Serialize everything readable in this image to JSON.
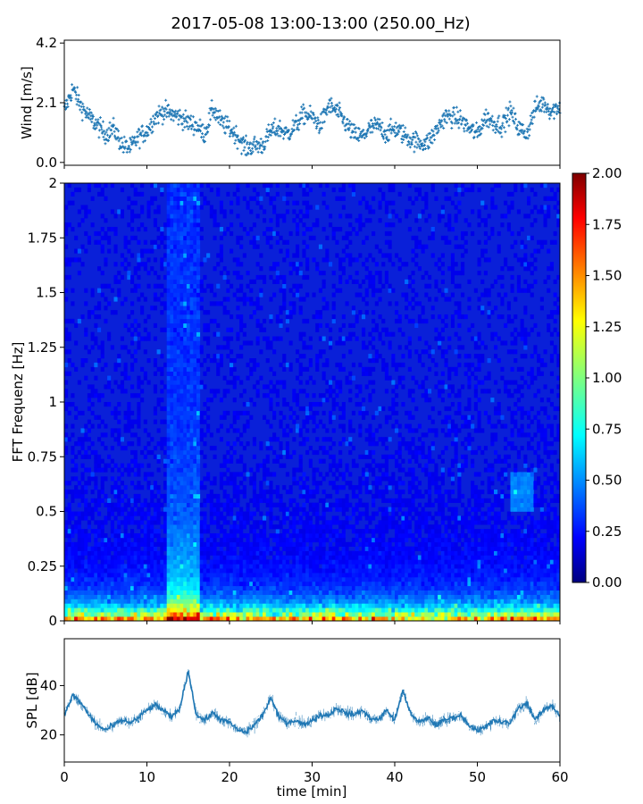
{
  "chart_data": [
    {
      "type": "scatter",
      "title": "2017-05-08 13:00-13:00 (250.00_Hz)",
      "ylabel": "Wind [m/s]",
      "xlim": [
        0,
        60
      ],
      "ylim": [
        -0.1,
        4.3
      ],
      "yticks": [
        "0.0",
        "2.1",
        "4.2"
      ],
      "marker_color": "#1f77b4",
      "x": [
        0,
        1,
        2,
        3,
        4,
        5,
        6,
        7,
        8,
        9,
        10,
        11,
        12,
        13,
        14,
        15,
        16,
        17,
        18,
        19,
        20,
        21,
        22,
        23,
        24,
        25,
        26,
        27,
        28,
        29,
        30,
        31,
        32,
        33,
        34,
        35,
        36,
        37,
        38,
        39,
        40,
        41,
        42,
        43,
        44,
        45,
        46,
        47,
        48,
        49,
        50,
        51,
        52,
        53,
        54,
        55,
        56,
        57,
        58,
        59,
        60
      ],
      "y": [
        1.8,
        2.6,
        2.0,
        1.6,
        1.3,
        1.0,
        1.2,
        0.6,
        0.5,
        0.9,
        1.1,
        1.6,
        1.8,
        1.7,
        1.6,
        1.4,
        1.3,
        1.0,
        1.9,
        1.4,
        1.2,
        0.9,
        0.5,
        0.6,
        0.6,
        1.1,
        1.2,
        1.0,
        1.3,
        1.7,
        1.6,
        1.3,
        2.0,
        1.8,
        1.4,
        1.0,
        0.9,
        1.2,
        1.3,
        1.0,
        1.2,
        1.0,
        0.8,
        0.7,
        0.7,
        1.1,
        1.6,
        1.6,
        1.5,
        1.2,
        1.0,
        1.6,
        1.4,
        1.3,
        1.8,
        1.2,
        1.0,
        1.9,
        2.1,
        1.8,
        2.0
      ]
    },
    {
      "type": "heatmap",
      "ylabel": "FFT Frequenz [Hz]",
      "xlim": [
        0,
        60
      ],
      "ylim": [
        0,
        2
      ],
      "yticks": [
        "0",
        "0.25",
        "0.5",
        "0.75",
        "1",
        "1.25",
        "1.5",
        "1.75",
        "2"
      ],
      "colormap": "jet",
      "colorbar": {
        "vmin": 0.0,
        "vmax": 2.0,
        "ticks": [
          "0.00",
          "0.25",
          "0.50",
          "0.75",
          "1.00",
          "1.25",
          "1.50",
          "1.75",
          "2.00"
        ]
      }
    },
    {
      "type": "line",
      "xlabel": "time [min]",
      "ylabel": "SPL [dB]",
      "xlim": [
        0,
        60
      ],
      "ylim": [
        9,
        59
      ],
      "xticks": [
        "0",
        "10",
        "20",
        "30",
        "40",
        "50",
        "60"
      ],
      "yticks": [
        "20",
        "40"
      ],
      "line_color": "#1f77b4",
      "x": [
        0,
        1,
        2,
        3,
        4,
        5,
        6,
        7,
        8,
        9,
        10,
        11,
        12,
        13,
        14,
        15,
        16,
        17,
        18,
        19,
        20,
        21,
        22,
        23,
        24,
        25,
        26,
        27,
        28,
        29,
        30,
        31,
        32,
        33,
        34,
        35,
        36,
        37,
        38,
        39,
        40,
        41,
        42,
        43,
        44,
        45,
        46,
        47,
        48,
        49,
        50,
        51,
        52,
        53,
        54,
        55,
        56,
        57,
        58,
        59,
        60
      ],
      "y": [
        28,
        36,
        33,
        28,
        24,
        22,
        24,
        26,
        25,
        27,
        30,
        32,
        30,
        27,
        31,
        46,
        28,
        26,
        29,
        26,
        25,
        22,
        21,
        24,
        28,
        35,
        27,
        25,
        26,
        24,
        26,
        28,
        28,
        31,
        29,
        28,
        30,
        27,
        26,
        30,
        26,
        38,
        28,
        25,
        27,
        24,
        26,
        27,
        28,
        24,
        22,
        23,
        26,
        25,
        25,
        31,
        33,
        26,
        30,
        32,
        28
      ]
    }
  ]
}
